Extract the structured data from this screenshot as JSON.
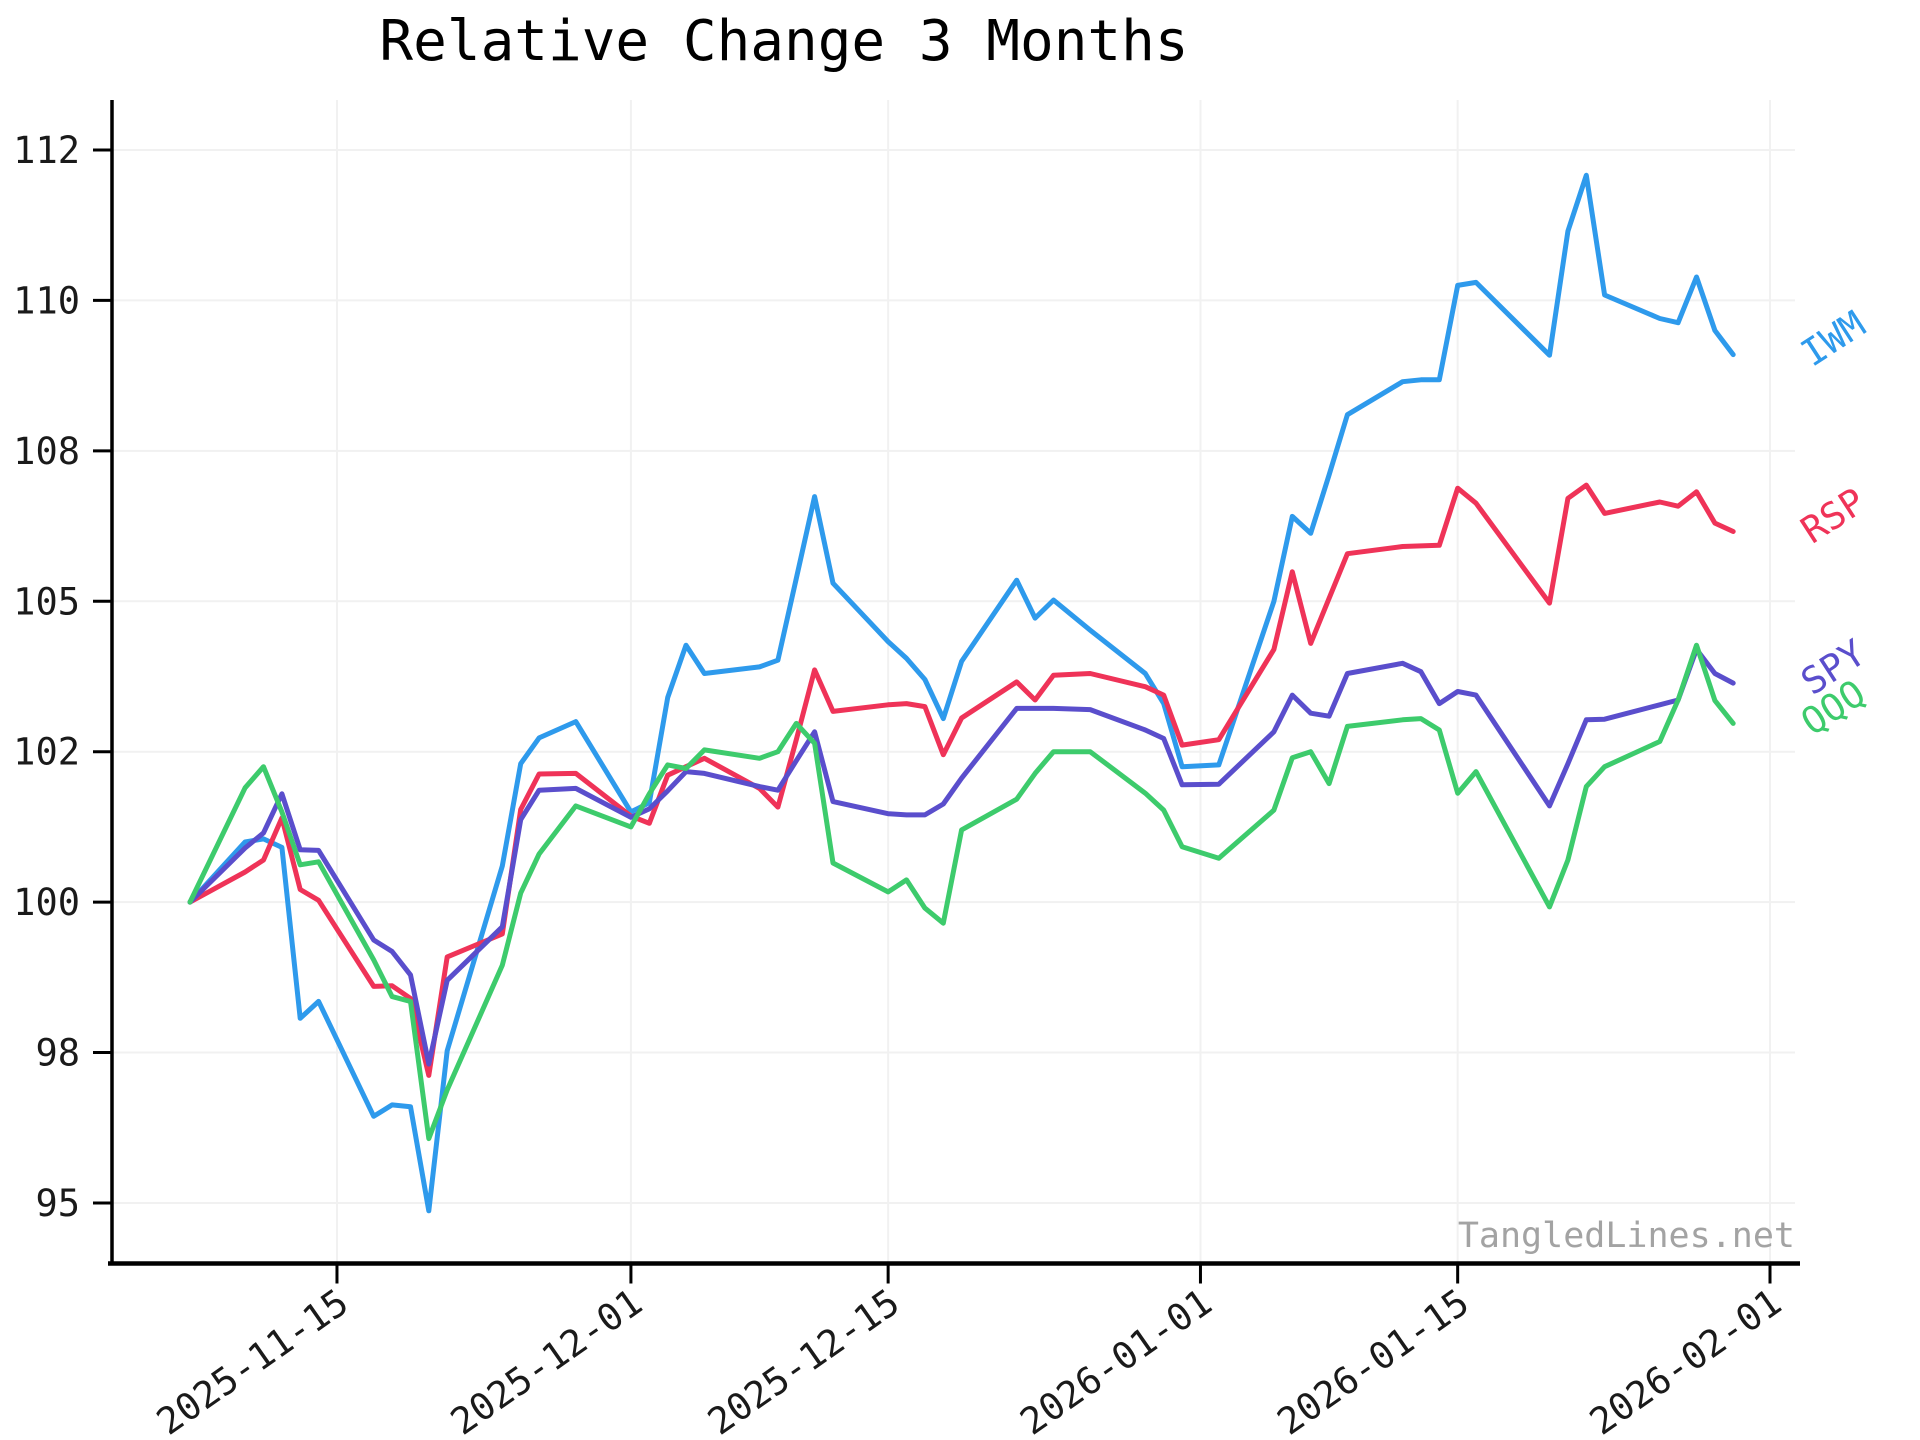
{
  "title": "Relative Change 3 Months",
  "watermark": "TangledLines.net",
  "chart_data": {
    "type": "line",
    "grid": true,
    "background": "#ffffff",
    "axis_color": "#000000",
    "grid_color": "#f1f1f1",
    "ylim": [
      94.0,
      113.3
    ],
    "xlim_dates": [
      "2025-11-03",
      "2026-02-02"
    ],
    "y_ticks": {
      "values": [
        112.5,
        110,
        107.5,
        105,
        102.5,
        100,
        97.5,
        95
      ],
      "labels": [
        "112",
        "110",
        "108",
        "105",
        "102",
        "100",
        "98",
        "95"
      ]
    },
    "x_ticks": {
      "dates": [
        "2025-11-15",
        "2025-12-01",
        "2025-12-15",
        "2026-01-01",
        "2026-01-15",
        "2026-02-01"
      ],
      "labels": [
        "2025-11-15",
        "2025-12-01",
        "2025-12-15",
        "2026-01-01",
        "2026-01-15",
        "2026-02-01"
      ]
    },
    "x_dates": [
      "2025-11-07",
      "2025-11-10",
      "2025-11-11",
      "2025-11-12",
      "2025-11-13",
      "2025-11-14",
      "2025-11-17",
      "2025-11-18",
      "2025-11-19",
      "2025-11-20",
      "2025-11-21",
      "2025-11-24",
      "2025-11-25",
      "2025-11-26",
      "2025-11-28",
      "2025-12-01",
      "2025-12-02",
      "2025-12-03",
      "2025-12-04",
      "2025-12-05",
      "2025-12-08",
      "2025-12-09",
      "2025-12-10",
      "2025-12-11",
      "2025-12-12",
      "2025-12-15",
      "2025-12-16",
      "2025-12-17",
      "2025-12-18",
      "2025-12-19",
      "2025-12-22",
      "2025-12-23",
      "2025-12-24",
      "2025-12-26",
      "2025-12-29",
      "2025-12-30",
      "2025-12-31",
      "2026-01-02",
      "2026-01-05",
      "2026-01-06",
      "2026-01-07",
      "2026-01-08",
      "2026-01-09",
      "2026-01-12",
      "2026-01-13",
      "2026-01-14",
      "2026-01-15",
      "2026-01-16",
      "2026-01-20",
      "2026-01-21",
      "2026-01-22",
      "2026-01-23",
      "2026-01-26",
      "2026-01-27",
      "2026-01-28",
      "2026-01-29",
      "2026-01-30"
    ],
    "series": [
      {
        "name": "IWM",
        "color": "#2E9AEC",
        "values": [
          100,
          101.0,
          101.05,
          100.91,
          98.07,
          98.35,
          96.44,
          96.63,
          96.6,
          94.87,
          97.53,
          100.6,
          102.3,
          102.73,
          103.0,
          101.5,
          101.65,
          103.4,
          104.27,
          103.8,
          103.91,
          104.02,
          105.38,
          106.74,
          105.3,
          104.33,
          104.05,
          103.7,
          103.05,
          104.0,
          105.35,
          104.72,
          105.02,
          104.52,
          103.8,
          103.3,
          102.25,
          102.28,
          105.0,
          106.41,
          106.13,
          107.1,
          108.1,
          108.65,
          108.68,
          108.68,
          110.25,
          110.3,
          109.09,
          111.15,
          112.08,
          110.09,
          109.7,
          109.63,
          110.39,
          109.5,
          109.1
        ]
      },
      {
        "name": "RSP",
        "color": "#EF3358",
        "values": [
          100,
          100.5,
          100.7,
          101.4,
          100.21,
          100.03,
          98.6,
          98.61,
          98.4,
          97.12,
          99.09,
          99.47,
          101.54,
          102.13,
          102.14,
          101.43,
          101.31,
          102.11,
          102.25,
          102.39,
          101.89,
          101.58,
          102.7,
          103.86,
          103.17,
          103.28,
          103.3,
          103.25,
          102.45,
          103.06,
          103.66,
          103.36,
          103.77,
          103.8,
          103.58,
          103.44,
          102.61,
          102.7,
          104.2,
          105.49,
          104.3,
          105.05,
          105.79,
          105.91,
          105.92,
          105.93,
          106.88,
          106.63,
          104.97,
          106.71,
          106.93,
          106.46,
          106.65,
          106.58,
          106.82,
          106.3,
          106.16
        ]
      },
      {
        "name": "SPY",
        "color": "#5A4ECC",
        "values": [
          100,
          100.9,
          101.15,
          101.8,
          100.87,
          100.86,
          99.37,
          99.18,
          98.79,
          97.31,
          98.7,
          99.59,
          101.37,
          101.86,
          101.89,
          101.41,
          101.55,
          101.85,
          102.17,
          102.14,
          101.92,
          101.86,
          102.35,
          102.83,
          101.67,
          101.47,
          101.45,
          101.45,
          101.63,
          102.06,
          103.22,
          103.22,
          103.22,
          103.2,
          102.86,
          102.72,
          101.95,
          101.96,
          102.83,
          103.44,
          103.14,
          103.09,
          103.8,
          103.97,
          103.83,
          103.3,
          103.5,
          103.44,
          101.6,
          102.3,
          103.03,
          103.04,
          103.28,
          103.36,
          104.2,
          103.8,
          103.64
        ]
      },
      {
        "name": "QQQ",
        "color": "#3DCB6C",
        "values": [
          100,
          101.9,
          102.25,
          101.5,
          100.62,
          100.67,
          99.04,
          98.43,
          98.35,
          96.07,
          96.88,
          98.95,
          100.15,
          100.8,
          101.6,
          101.25,
          101.8,
          102.28,
          102.22,
          102.53,
          102.39,
          102.5,
          102.97,
          102.64,
          100.65,
          100.17,
          100.37,
          99.9,
          99.65,
          101.2,
          101.71,
          102.14,
          102.5,
          102.5,
          101.81,
          101.53,
          100.92,
          100.73,
          101.53,
          102.4,
          102.5,
          101.97,
          102.92,
          103.03,
          103.05,
          102.86,
          101.81,
          102.17,
          99.92,
          100.7,
          101.92,
          102.25,
          102.67,
          103.36,
          104.27,
          103.35,
          102.97
        ]
      }
    ],
    "legend_position": "right-of-line-ends"
  }
}
